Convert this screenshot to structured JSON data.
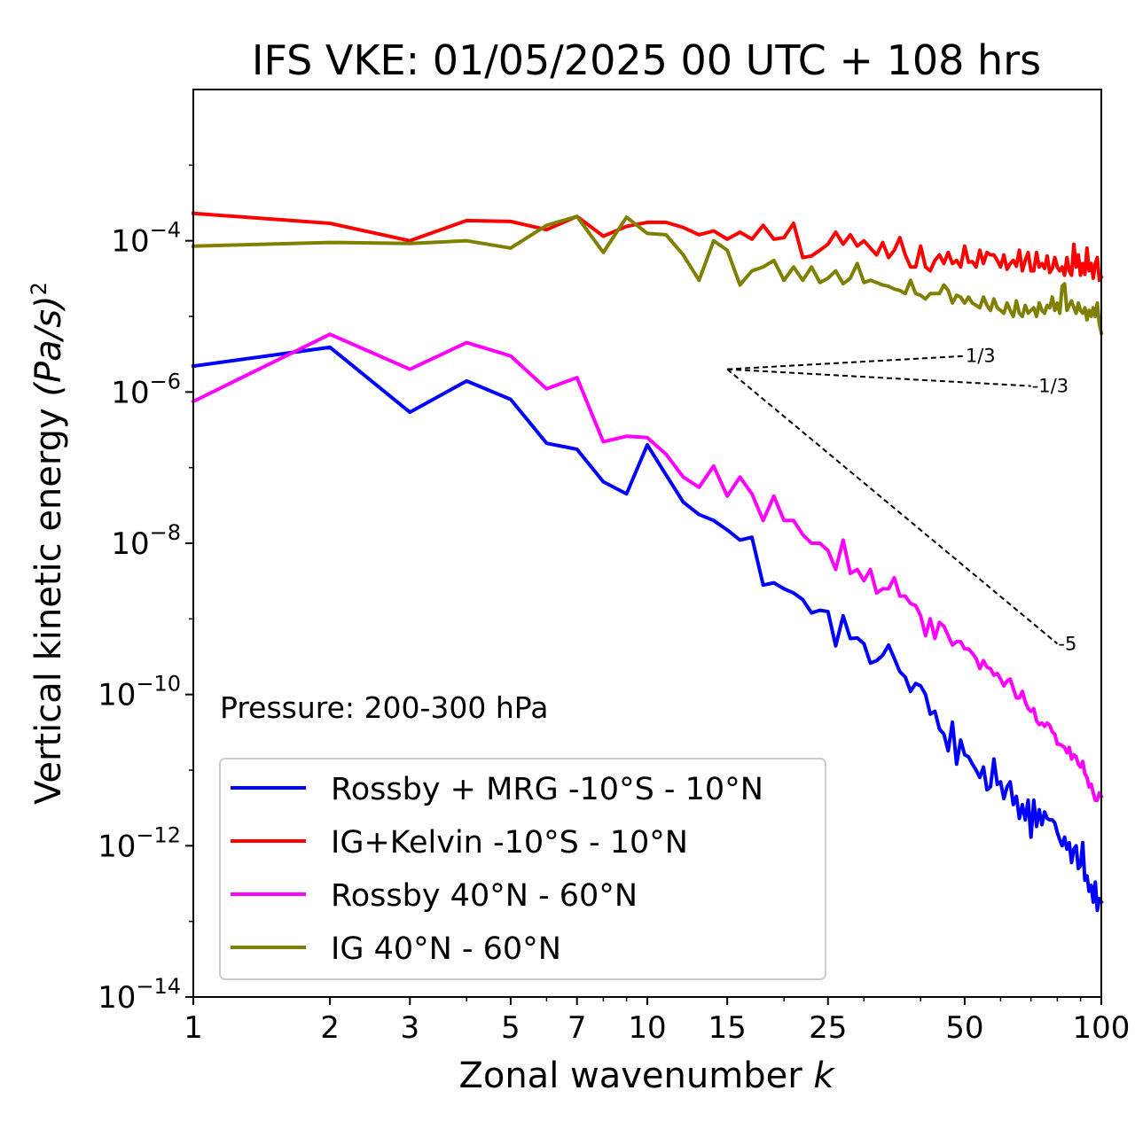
{
  "chart_data": {
    "type": "line",
    "title": "IFS VKE: 01/05/2025 00 UTC + 108 hrs",
    "xlabel": "Zonal wavenumber",
    "xlabel_var": "k",
    "ylabel": "Vertical kinetic energy",
    "ylabel_units": "(Pa/s)",
    "ylabel_exp": "2",
    "xscale": "log",
    "yscale": "log",
    "xlim": [
      1,
      100
    ],
    "ylim": [
      1e-14,
      0.01
    ],
    "x_ticks": [
      1,
      2,
      3,
      5,
      7,
      10,
      15,
      25,
      50,
      100
    ],
    "x_tick_labels": [
      "1",
      "2",
      "3",
      "5",
      "7",
      "10",
      "15",
      "25",
      "50",
      "100"
    ],
    "y_ticks": [
      {
        "value": 0.0001,
        "base": "10",
        "exp": "−4"
      },
      {
        "value": 1e-06,
        "base": "10",
        "exp": "−6"
      },
      {
        "value": 1e-08,
        "base": "10",
        "exp": "−8"
      },
      {
        "value": 1e-10,
        "base": "10",
        "exp": "−10"
      },
      {
        "value": 1e-12,
        "base": "10",
        "exp": "−12"
      },
      {
        "value": 1e-14,
        "base": "10",
        "exp": "−14"
      }
    ],
    "annotation": "Pressure: 200-300 hPa",
    "legend_position": "lower-left",
    "grid": false,
    "series": [
      {
        "name": "Rossby + MRG -10°S - 10°N",
        "color": "#0000ff",
        "x": [
          1,
          2,
          3,
          4,
          5,
          6,
          7,
          8,
          9,
          10,
          11,
          12,
          13,
          14,
          15,
          16,
          17,
          18,
          19,
          20,
          21,
          22,
          23,
          24,
          25,
          26,
          27,
          28,
          29,
          30,
          31,
          32,
          33,
          34,
          35,
          36,
          37,
          38,
          39,
          40,
          41,
          42,
          43,
          44,
          45,
          46,
          47,
          48,
          49,
          50,
          51,
          52,
          53,
          54,
          55,
          56,
          57,
          58,
          59,
          60,
          61,
          62,
          63,
          64,
          65,
          66,
          67,
          68,
          69,
          70,
          71,
          72,
          73,
          74,
          75,
          76,
          77,
          78,
          79,
          80,
          81,
          82,
          83,
          84,
          85,
          86,
          87,
          88,
          89,
          90,
          91,
          92,
          93,
          94,
          95,
          96,
          97,
          98,
          99,
          100
        ],
        "y": [
          2.2e-06,
          3.9e-06,
          5.4e-07,
          1.4e-06,
          8e-07,
          2.1e-07,
          1.75e-07,
          6.5e-08,
          4.5e-08,
          2e-07,
          8e-08,
          3.5e-08,
          2.4e-08,
          2e-08,
          1.5e-08,
          1.1e-08,
          1.2e-08,
          2.8e-09,
          3e-09,
          2.5e-09,
          2.2e-09,
          1.8e-09,
          1.2e-09,
          1.3e-09,
          1.25e-09,
          4.4e-10,
          1.1e-09,
          5.5e-10,
          5.6e-10,
          4.7e-10,
          2.6e-10,
          2.8e-10,
          3.3e-10,
          4.5e-10,
          3e-10,
          2e-10,
          1.7e-10,
          1.1e-10,
          1.4e-10,
          1.3e-10,
          1e-10,
          5.5e-11,
          6e-11,
          3.5e-11,
          3e-11,
          1.8e-11,
          4.3e-11,
          1.2e-11,
          2.5e-11,
          1.6e-11,
          1.5e-11,
          1.2e-11,
          1e-11,
          8e-12,
          1.1e-11,
          5.5e-12,
          6e-12,
          1.4e-11,
          6.5e-12,
          7e-12,
          4.2e-12,
          6e-12,
          7e-12,
          3.5e-12,
          4.5e-12,
          2.3e-12,
          3.5e-12,
          2.2e-12,
          4e-12,
          1.3e-12,
          4e-12,
          1.8e-12,
          3e-12,
          1.9e-12,
          2.8e-12,
          2.3e-12,
          2.2e-12,
          2.2e-12,
          2e-12,
          1.5e-12,
          1.2e-12,
          1e-12,
          1.3e-12,
          9e-13,
          1.1e-12,
          6e-13,
          9e-13,
          1e-12,
          5e-13,
          5.5e-13,
          1.1e-12,
          3.5e-13,
          4e-13,
          2.5e-13,
          3e-13,
          1.8e-13,
          3.3e-13,
          1.4e-13,
          2e-13,
          1.8e-13
        ]
      },
      {
        "name": "IG+Kelvin -10°S - 10°N",
        "color": "#ff0000",
        "x": [
          1,
          2,
          3,
          4,
          5,
          6,
          7,
          8,
          9,
          10,
          11,
          12,
          13,
          14,
          15,
          16,
          17,
          18,
          19,
          20,
          21,
          22,
          23,
          24,
          25,
          26,
          27,
          28,
          29,
          30,
          31,
          32,
          33,
          34,
          35,
          36,
          37,
          38,
          39,
          40,
          41,
          42,
          43,
          44,
          45,
          46,
          47,
          48,
          49,
          50,
          51,
          52,
          53,
          54,
          55,
          56,
          57,
          58,
          59,
          60,
          61,
          62,
          63,
          64,
          65,
          66,
          67,
          68,
          69,
          70,
          71,
          72,
          73,
          74,
          75,
          76,
          77,
          78,
          79,
          80,
          81,
          82,
          83,
          84,
          85,
          86,
          87,
          88,
          89,
          90,
          91,
          92,
          93,
          94,
          95,
          96,
          97,
          98,
          99,
          100
        ],
        "y": [
          0.00023,
          0.00017,
          0.0001,
          0.000185,
          0.00018,
          0.00014,
          0.00021,
          0.000115,
          0.000155,
          0.000175,
          0.000175,
          0.00015,
          0.00012,
          0.000135,
          0.000105,
          0.00013,
          0.000105,
          0.00016,
          0.000105,
          0.00011,
          0.00017,
          6e-05,
          6.3e-05,
          7.5e-05,
          9e-05,
          0.00013,
          9e-05,
          0.00012,
          8.5e-05,
          0.0001,
          8e-05,
          6.5e-05,
          9.5e-05,
          6e-05,
          7.5e-05,
          0.00011,
          6.5e-05,
          4.5e-05,
          4.5e-05,
          8.5e-05,
          4.5e-05,
          4e-05,
          5.5e-05,
          6.5e-05,
          5e-05,
          7e-05,
          5e-05,
          5.5e-05,
          4.5e-05,
          8.5e-05,
          5.2e-05,
          5.3e-05,
          4.5e-05,
          7.5e-05,
          5e-05,
          7e-05,
          6.5e-05,
          6.5e-05,
          5.5e-05,
          4.5e-05,
          6.5e-05,
          4.2e-05,
          5e-05,
          5.5e-05,
          4.6e-05,
          7.5e-05,
          4e-05,
          5.5e-05,
          7e-05,
          4e-05,
          4e-05,
          7e-05,
          4.5e-05,
          5e-05,
          4.3e-05,
          6.3e-05,
          3.8e-05,
          4.3e-05,
          6e-05,
          4.5e-05,
          4e-05,
          4.5e-05,
          3.5e-05,
          6e-05,
          4e-05,
          3.5e-05,
          9e-05,
          4.5e-05,
          6.5e-05,
          3.5e-05,
          5e-05,
          3.6e-05,
          8e-05,
          4e-05,
          5e-05,
          3.2e-05,
          5e-05,
          6e-05,
          3e-05,
          3.3e-05
        ]
      },
      {
        "name": "Rossby 40°N - 60°N",
        "color": "#ff00ff",
        "x": [
          1,
          2,
          3,
          4,
          5,
          6,
          7,
          8,
          9,
          10,
          11,
          12,
          13,
          14,
          15,
          16,
          17,
          18,
          19,
          20,
          21,
          22,
          23,
          24,
          25,
          26,
          27,
          28,
          29,
          30,
          31,
          32,
          33,
          34,
          35,
          36,
          37,
          38,
          39,
          40,
          41,
          42,
          43,
          44,
          45,
          46,
          47,
          48,
          49,
          50,
          51,
          52,
          53,
          54,
          55,
          56,
          57,
          58,
          59,
          60,
          61,
          62,
          63,
          64,
          65,
          66,
          67,
          68,
          69,
          70,
          71,
          72,
          73,
          74,
          75,
          76,
          77,
          78,
          79,
          80,
          81,
          82,
          83,
          84,
          85,
          86,
          87,
          88,
          89,
          90,
          91,
          92,
          93,
          94,
          95,
          96,
          97,
          98,
          99,
          100
        ],
        "y": [
          7.5e-07,
          5.8e-06,
          2e-06,
          4.5e-06,
          3e-06,
          1.1e-06,
          1.55e-06,
          2.2e-07,
          2.6e-07,
          2.5e-07,
          1.5e-07,
          7.5e-08,
          5.5e-08,
          1.05e-07,
          4.2e-08,
          7.5e-08,
          4.5e-08,
          2e-08,
          4.2e-08,
          2e-08,
          2e-08,
          1.3e-08,
          1e-08,
          1e-08,
          8e-09,
          4.5e-09,
          1.1e-08,
          4e-09,
          4.5e-09,
          3.2e-09,
          4.5e-09,
          2.2e-09,
          2.5e-09,
          2.5e-09,
          3.5e-09,
          2e-09,
          2e-09,
          1.6e-09,
          1.5e-09,
          1.1e-09,
          6e-10,
          1e-09,
          5.5e-10,
          9e-10,
          8e-10,
          6e-10,
          4.5e-10,
          5e-10,
          5e-10,
          4e-10,
          4e-10,
          3.5e-10,
          3e-10,
          2.2e-10,
          2.8e-10,
          2.3e-10,
          2.2e-10,
          1.8e-10,
          1.9e-10,
          1.6e-10,
          1.3e-10,
          1.5e-10,
          1.6e-10,
          1.2e-10,
          9e-11,
          9e-11,
          1.1e-10,
          8e-11,
          6.5e-11,
          6e-11,
          6.5e-11,
          4.5e-11,
          4e-11,
          4.2e-11,
          3.8e-11,
          4.2e-11,
          3.9e-11,
          3.2e-11,
          3e-11,
          2.2e-11,
          2.2e-11,
          2.1e-11,
          2e-11,
          1.7e-11,
          2e-11,
          1.4e-11,
          1.6e-11,
          1.5e-11,
          1.2e-11,
          1.1e-11,
          1.3e-11,
          9e-12,
          8e-12,
          6e-12,
          6.5e-12,
          5e-12,
          4e-12,
          4e-12,
          5e-12,
          4.5e-12
        ]
      },
      {
        "name": "IG 40°N - 60°N",
        "color": "#808000",
        "x": [
          1,
          2,
          3,
          4,
          5,
          6,
          7,
          8,
          9,
          10,
          11,
          12,
          13,
          14,
          15,
          16,
          17,
          18,
          19,
          20,
          21,
          22,
          23,
          24,
          25,
          26,
          27,
          28,
          29,
          30,
          31,
          32,
          33,
          34,
          35,
          36,
          37,
          38,
          39,
          40,
          41,
          42,
          43,
          44,
          45,
          46,
          47,
          48,
          49,
          50,
          51,
          52,
          53,
          54,
          55,
          56,
          57,
          58,
          59,
          60,
          61,
          62,
          63,
          64,
          65,
          66,
          67,
          68,
          69,
          70,
          71,
          72,
          73,
          74,
          75,
          76,
          77,
          78,
          79,
          80,
          81,
          82,
          83,
          84,
          85,
          86,
          87,
          88,
          89,
          90,
          91,
          92,
          93,
          94,
          95,
          96,
          97,
          98,
          99,
          100
        ],
        "y": [
          8.5e-05,
          9.5e-05,
          9.2e-05,
          0.0001,
          8e-05,
          0.00016,
          0.00021,
          7e-05,
          0.000205,
          0.000125,
          0.00012,
          6.5e-05,
          3e-05,
          0.0001,
          7.5e-05,
          2.6e-05,
          4e-05,
          4.5e-05,
          5.5e-05,
          3e-05,
          4.5e-05,
          3e-05,
          4.5e-05,
          2.8e-05,
          3.2e-05,
          4e-05,
          2.7e-05,
          3.2e-05,
          5e-05,
          2.8e-05,
          3e-05,
          2.8e-05,
          2.6e-05,
          2.5e-05,
          2.3e-05,
          2.2e-05,
          2e-05,
          3e-05,
          2e-05,
          1.9e-05,
          1.7e-05,
          2e-05,
          2e-05,
          2e-05,
          2.6e-05,
          2.2e-05,
          1.5e-05,
          1.9e-05,
          1.8e-05,
          1.5e-05,
          1.8e-05,
          1.5e-05,
          1.4e-05,
          1.3e-05,
          1.8e-05,
          1.4e-05,
          1.2e-05,
          1.7e-05,
          1.3e-05,
          1.2e-05,
          1.1e-05,
          1.5e-05,
          1.2e-05,
          1e-05,
          1.6e-05,
          1.1e-05,
          1e-05,
          1.4e-05,
          1.1e-05,
          1.2e-05,
          1.3e-05,
          1e-05,
          1.5e-05,
          1.2e-05,
          1.1e-05,
          1.4e-05,
          1.3e-05,
          1.8e-05,
          1.2e-05,
          1.5e-05,
          1.1e-05,
          2.5e-05,
          2.7e-05,
          1.2e-05,
          1.4e-05,
          1.6e-05,
          1.3e-05,
          1.1e-05,
          1.5e-05,
          1.2e-05,
          1.1e-05,
          1.3e-05,
          9e-06,
          1.2e-05,
          1e-05,
          1.3e-05,
          1e-05,
          1.5e-05,
          8e-06,
          6e-06
        ]
      }
    ],
    "reference_slopes": [
      {
        "label": "1/3",
        "x": [
          15,
          50
        ],
        "y": [
          2e-06,
          2.99e-06
        ]
      },
      {
        "label": "-1/3",
        "x": [
          15,
          70
        ],
        "y": [
          2e-06,
          1.2e-06
        ]
      },
      {
        "label": "-5",
        "x": [
          15,
          80
        ],
        "y": [
          2e-06,
          4.7e-10
        ]
      }
    ]
  }
}
